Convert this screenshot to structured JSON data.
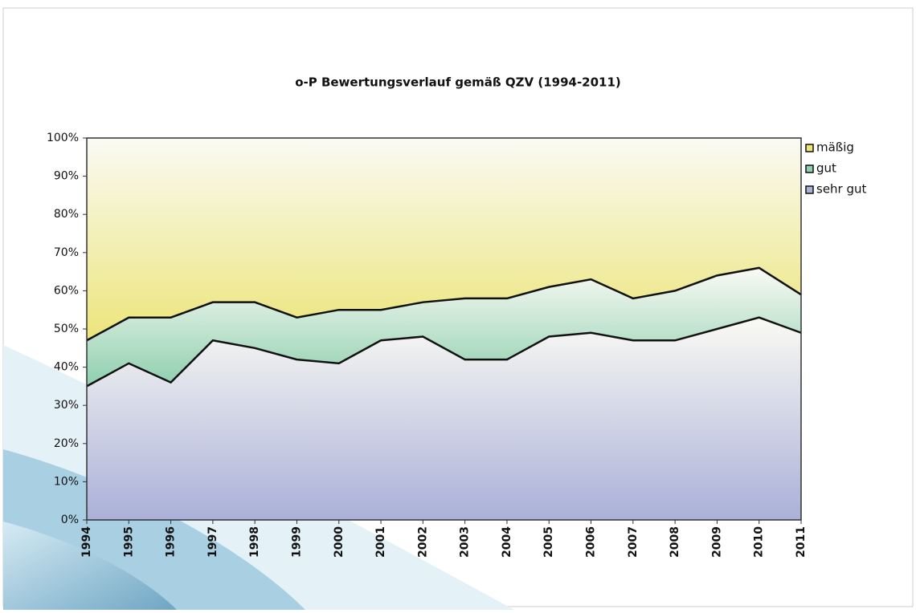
{
  "chart_data": {
    "type": "stacked_area",
    "title": "o-P Bewertungsverlauf gemäß QZV (1994-2011)",
    "categories": [
      "1994",
      "1995",
      "1996",
      "1997",
      "1998",
      "1999",
      "2000",
      "2001",
      "2002",
      "2003",
      "2004",
      "2005",
      "2006",
      "2007",
      "2008",
      "2009",
      "2010",
      "2011"
    ],
    "series": [
      {
        "name": "sehr gut",
        "color": "#aab0d8",
        "values": [
          35,
          41,
          36,
          47,
          45,
          42,
          41,
          47,
          48,
          42,
          42,
          48,
          49,
          47,
          47,
          50,
          53,
          49
        ]
      },
      {
        "name": "gut",
        "color": "#8ecfae",
        "values": [
          12,
          12,
          17,
          10,
          12,
          11,
          14,
          8,
          9,
          16,
          16,
          13,
          14,
          11,
          13,
          14,
          13,
          10
        ]
      },
      {
        "name": "mäßig",
        "color": "#ece57a",
        "values": [
          53,
          47,
          47,
          43,
          43,
          47,
          45,
          45,
          43,
          42,
          42,
          39,
          37,
          42,
          40,
          36,
          34,
          41
        ]
      }
    ],
    "ylim": [
      0,
      100
    ],
    "yticks": [
      {
        "value": 0,
        "label": "0%"
      },
      {
        "value": 10,
        "label": "10%"
      },
      {
        "value": 20,
        "label": "20%"
      },
      {
        "value": 30,
        "label": "30%"
      },
      {
        "value": 40,
        "label": "40%"
      },
      {
        "value": 50,
        "label": "50%"
      },
      {
        "value": 60,
        "label": "60%"
      },
      {
        "value": 70,
        "label": "70%"
      },
      {
        "value": 80,
        "label": "80%"
      },
      {
        "value": 90,
        "label": "90%"
      },
      {
        "value": 100,
        "label": "100%"
      }
    ],
    "legend": "right"
  }
}
